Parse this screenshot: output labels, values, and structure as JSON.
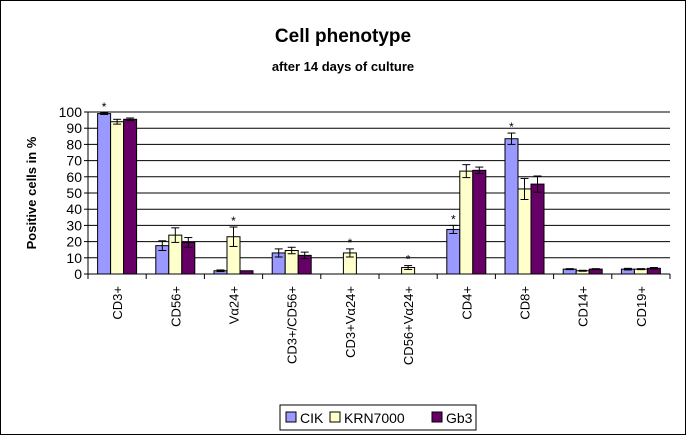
{
  "chart_data": {
    "type": "bar",
    "title": "Cell phenotype",
    "subtitle": "after 14 days of culture",
    "xlabel": "",
    "ylabel": "Positive cells in %",
    "ylim": [
      0,
      100
    ],
    "yticks": [
      0,
      10,
      20,
      30,
      40,
      50,
      60,
      70,
      80,
      90,
      100
    ],
    "grid": true,
    "legend_position": "bottom",
    "categories": [
      "CD3+",
      "CD56+",
      "Vα24+",
      "CD3+/CD56+",
      "CD3+Vα24+",
      "CD56+Vα24+",
      "CD4+",
      "CD8+",
      "CD14+",
      "CD19+"
    ],
    "series": [
      {
        "name": "CIK",
        "color": "#9999FF",
        "values": [
          99,
          17.5,
          2,
          13,
          0,
          0,
          27.5,
          83.5,
          3,
          3
        ],
        "errors": [
          0.5,
          3,
          0.5,
          2.5,
          0,
          0,
          2.5,
          3.5,
          0.3,
          0.5
        ]
      },
      {
        "name": "KRN7000",
        "color": "#FFFFCC",
        "values": [
          94,
          24,
          23,
          14.5,
          13,
          4,
          63.5,
          52.5,
          2,
          3
        ],
        "errors": [
          1.5,
          4.5,
          6,
          2,
          2.5,
          1.2,
          4,
          6.5,
          0.3,
          0.3
        ]
      },
      {
        "name": "Gb3",
        "color": "#660066",
        "values": [
          95.5,
          19.5,
          2,
          11.5,
          0,
          0,
          64,
          55.5,
          3,
          3.5
        ],
        "errors": [
          0.8,
          3,
          0,
          2,
          0,
          0,
          2,
          5,
          0.3,
          0.5
        ]
      }
    ],
    "annotations": [
      {
        "text": "*",
        "category": "CD3+",
        "series": "CIK"
      },
      {
        "text": "*",
        "category": "Vα24+",
        "series": "KRN7000"
      },
      {
        "text": "*",
        "category": "CD3+Vα24+",
        "series": "KRN7000"
      },
      {
        "text": "*",
        "category": "CD56+Vα24+",
        "series": "KRN7000"
      },
      {
        "text": "*",
        "category": "CD4+",
        "series": "CIK"
      },
      {
        "text": "*",
        "category": "CD8+",
        "series": "CIK"
      }
    ]
  }
}
